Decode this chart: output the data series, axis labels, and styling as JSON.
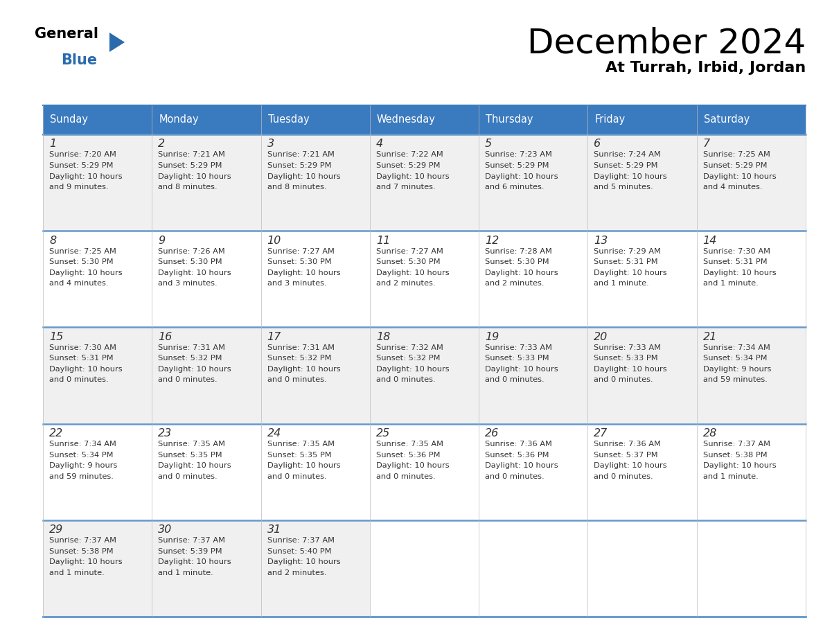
{
  "title": "December 2024",
  "subtitle": "At Turrah, Irbid, Jordan",
  "days_of_week": [
    "Sunday",
    "Monday",
    "Tuesday",
    "Wednesday",
    "Thursday",
    "Friday",
    "Saturday"
  ],
  "header_bg": "#3a7abf",
  "header_text": "#ffffff",
  "row_bg_odd": "#f0f0f0",
  "row_bg_even": "#ffffff",
  "border_color": "#3a7abf",
  "separator_color": "#6699cc",
  "text_color": "#333333",
  "calendar_data": [
    {
      "day": 1,
      "col": 0,
      "row": 0,
      "sunrise": "7:20 AM",
      "sunset": "5:29 PM",
      "daylight": "10 hours",
      "daylight2": "and 9 minutes."
    },
    {
      "day": 2,
      "col": 1,
      "row": 0,
      "sunrise": "7:21 AM",
      "sunset": "5:29 PM",
      "daylight": "10 hours",
      "daylight2": "and 8 minutes."
    },
    {
      "day": 3,
      "col": 2,
      "row": 0,
      "sunrise": "7:21 AM",
      "sunset": "5:29 PM",
      "daylight": "10 hours",
      "daylight2": "and 8 minutes."
    },
    {
      "day": 4,
      "col": 3,
      "row": 0,
      "sunrise": "7:22 AM",
      "sunset": "5:29 PM",
      "daylight": "10 hours",
      "daylight2": "and 7 minutes."
    },
    {
      "day": 5,
      "col": 4,
      "row": 0,
      "sunrise": "7:23 AM",
      "sunset": "5:29 PM",
      "daylight": "10 hours",
      "daylight2": "and 6 minutes."
    },
    {
      "day": 6,
      "col": 5,
      "row": 0,
      "sunrise": "7:24 AM",
      "sunset": "5:29 PM",
      "daylight": "10 hours",
      "daylight2": "and 5 minutes."
    },
    {
      "day": 7,
      "col": 6,
      "row": 0,
      "sunrise": "7:25 AM",
      "sunset": "5:29 PM",
      "daylight": "10 hours",
      "daylight2": "and 4 minutes."
    },
    {
      "day": 8,
      "col": 0,
      "row": 1,
      "sunrise": "7:25 AM",
      "sunset": "5:30 PM",
      "daylight": "10 hours",
      "daylight2": "and 4 minutes."
    },
    {
      "day": 9,
      "col": 1,
      "row": 1,
      "sunrise": "7:26 AM",
      "sunset": "5:30 PM",
      "daylight": "10 hours",
      "daylight2": "and 3 minutes."
    },
    {
      "day": 10,
      "col": 2,
      "row": 1,
      "sunrise": "7:27 AM",
      "sunset": "5:30 PM",
      "daylight": "10 hours",
      "daylight2": "and 3 minutes."
    },
    {
      "day": 11,
      "col": 3,
      "row": 1,
      "sunrise": "7:27 AM",
      "sunset": "5:30 PM",
      "daylight": "10 hours",
      "daylight2": "and 2 minutes."
    },
    {
      "day": 12,
      "col": 4,
      "row": 1,
      "sunrise": "7:28 AM",
      "sunset": "5:30 PM",
      "daylight": "10 hours",
      "daylight2": "and 2 minutes."
    },
    {
      "day": 13,
      "col": 5,
      "row": 1,
      "sunrise": "7:29 AM",
      "sunset": "5:31 PM",
      "daylight": "10 hours",
      "daylight2": "and 1 minute."
    },
    {
      "day": 14,
      "col": 6,
      "row": 1,
      "sunrise": "7:30 AM",
      "sunset": "5:31 PM",
      "daylight": "10 hours",
      "daylight2": "and 1 minute."
    },
    {
      "day": 15,
      "col": 0,
      "row": 2,
      "sunrise": "7:30 AM",
      "sunset": "5:31 PM",
      "daylight": "10 hours",
      "daylight2": "and 0 minutes."
    },
    {
      "day": 16,
      "col": 1,
      "row": 2,
      "sunrise": "7:31 AM",
      "sunset": "5:32 PM",
      "daylight": "10 hours",
      "daylight2": "and 0 minutes."
    },
    {
      "day": 17,
      "col": 2,
      "row": 2,
      "sunrise": "7:31 AM",
      "sunset": "5:32 PM",
      "daylight": "10 hours",
      "daylight2": "and 0 minutes."
    },
    {
      "day": 18,
      "col": 3,
      "row": 2,
      "sunrise": "7:32 AM",
      "sunset": "5:32 PM",
      "daylight": "10 hours",
      "daylight2": "and 0 minutes."
    },
    {
      "day": 19,
      "col": 4,
      "row": 2,
      "sunrise": "7:33 AM",
      "sunset": "5:33 PM",
      "daylight": "10 hours",
      "daylight2": "and 0 minutes."
    },
    {
      "day": 20,
      "col": 5,
      "row": 2,
      "sunrise": "7:33 AM",
      "sunset": "5:33 PM",
      "daylight": "10 hours",
      "daylight2": "and 0 minutes."
    },
    {
      "day": 21,
      "col": 6,
      "row": 2,
      "sunrise": "7:34 AM",
      "sunset": "5:34 PM",
      "daylight": "9 hours",
      "daylight2": "and 59 minutes."
    },
    {
      "day": 22,
      "col": 0,
      "row": 3,
      "sunrise": "7:34 AM",
      "sunset": "5:34 PM",
      "daylight": "9 hours",
      "daylight2": "and 59 minutes."
    },
    {
      "day": 23,
      "col": 1,
      "row": 3,
      "sunrise": "7:35 AM",
      "sunset": "5:35 PM",
      "daylight": "10 hours",
      "daylight2": "and 0 minutes."
    },
    {
      "day": 24,
      "col": 2,
      "row": 3,
      "sunrise": "7:35 AM",
      "sunset": "5:35 PM",
      "daylight": "10 hours",
      "daylight2": "and 0 minutes."
    },
    {
      "day": 25,
      "col": 3,
      "row": 3,
      "sunrise": "7:35 AM",
      "sunset": "5:36 PM",
      "daylight": "10 hours",
      "daylight2": "and 0 minutes."
    },
    {
      "day": 26,
      "col": 4,
      "row": 3,
      "sunrise": "7:36 AM",
      "sunset": "5:36 PM",
      "daylight": "10 hours",
      "daylight2": "and 0 minutes."
    },
    {
      "day": 27,
      "col": 5,
      "row": 3,
      "sunrise": "7:36 AM",
      "sunset": "5:37 PM",
      "daylight": "10 hours",
      "daylight2": "and 0 minutes."
    },
    {
      "day": 28,
      "col": 6,
      "row": 3,
      "sunrise": "7:37 AM",
      "sunset": "5:38 PM",
      "daylight": "10 hours",
      "daylight2": "and 1 minute."
    },
    {
      "day": 29,
      "col": 0,
      "row": 4,
      "sunrise": "7:37 AM",
      "sunset": "5:38 PM",
      "daylight": "10 hours",
      "daylight2": "and 1 minute."
    },
    {
      "day": 30,
      "col": 1,
      "row": 4,
      "sunrise": "7:37 AM",
      "sunset": "5:39 PM",
      "daylight": "10 hours",
      "daylight2": "and 1 minute."
    },
    {
      "day": 31,
      "col": 2,
      "row": 4,
      "sunrise": "7:37 AM",
      "sunset": "5:40 PM",
      "daylight": "10 hours",
      "daylight2": "and 2 minutes."
    }
  ],
  "logo_triangle_color": "#2a6aad",
  "num_rows": 5,
  "num_cols": 7,
  "fig_width": 11.88,
  "fig_height": 9.18,
  "dpi": 100
}
